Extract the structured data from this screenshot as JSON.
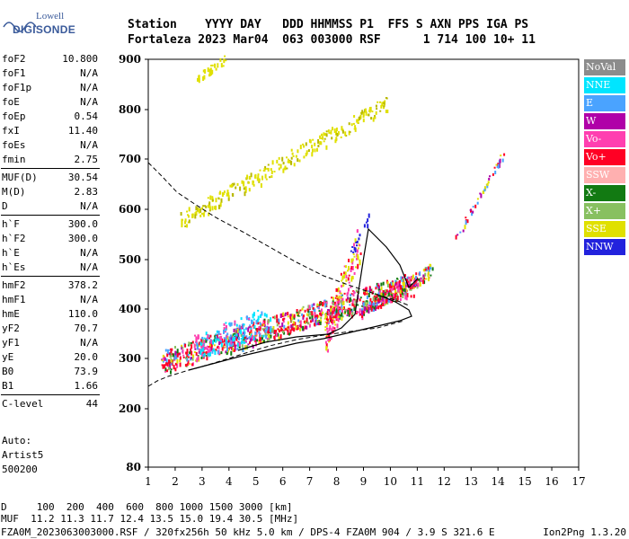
{
  "brand": {
    "line1": "Lowell",
    "line2": "DIGISONDE"
  },
  "header": {
    "line1": "Station    YYYY DAY   DDD HHMMSS P1  FFS S AXN PPS IGA PS",
    "line2": "Fortaleza 2023 Mar04  063 003000 RSF      1 714 100 10+ 11"
  },
  "params": [
    [
      {
        "k": "foF2",
        "v": "10.800"
      },
      {
        "k": "foF1",
        "v": "N/A"
      },
      {
        "k": "foF1p",
        "v": "N/A"
      },
      {
        "k": "foE",
        "v": "N/A"
      },
      {
        "k": "foEp",
        "v": "0.54"
      },
      {
        "k": "fxI",
        "v": "11.40"
      },
      {
        "k": "foEs",
        "v": "N/A"
      },
      {
        "k": "fmin",
        "v": "2.75"
      }
    ],
    [
      {
        "k": "MUF(D)",
        "v": "30.54"
      },
      {
        "k": "M(D)",
        "v": "2.83"
      },
      {
        "k": "D",
        "v": "N/A"
      }
    ],
    [
      {
        "k": "h`F",
        "v": "300.0"
      },
      {
        "k": "h`F2",
        "v": "300.0"
      },
      {
        "k": "h`E",
        "v": "N/A"
      },
      {
        "k": "h`Es",
        "v": "N/A"
      }
    ],
    [
      {
        "k": "hmF2",
        "v": "378.2"
      },
      {
        "k": "hmF1",
        "v": "N/A"
      },
      {
        "k": "hmE",
        "v": "110.0"
      },
      {
        "k": "yF2",
        "v": "70.7"
      },
      {
        "k": "yF1",
        "v": "N/A"
      },
      {
        "k": "yE",
        "v": "20.0"
      },
      {
        "k": "B0",
        "v": "73.9"
      },
      {
        "k": "B1",
        "v": "1.66"
      }
    ],
    [
      {
        "k": "C-level",
        "v": "44"
      }
    ]
  ],
  "auto": {
    "line1": "Auto:",
    "line2": "Artist5",
    "line3": "500200"
  },
  "legend": [
    {
      "label": "NoVal",
      "color": "#8c8c8c"
    },
    {
      "label": "NNE",
      "color": "#00e5ff"
    },
    {
      "label": "E",
      "color": "#4aa3ff"
    },
    {
      "label": "W",
      "color": "#b000a8"
    },
    {
      "label": "Vo-",
      "color": "#ff3fb0"
    },
    {
      "label": "Vo+",
      "color": "#ff0024"
    },
    {
      "label": "SSW",
      "color": "#ffb0b0"
    },
    {
      "label": "X-",
      "color": "#127a12"
    },
    {
      "label": "X+",
      "color": "#88c060"
    },
    {
      "label": "SSE",
      "color": "#e0e000"
    },
    {
      "label": "NNW",
      "color": "#2222dd"
    }
  ],
  "axes": {
    "y_ticks": [
      "900",
      "800",
      "700",
      "600",
      "500",
      "400",
      "300",
      "200",
      "80"
    ],
    "x_ticks": [
      "1",
      "2",
      "3",
      "4",
      "5",
      "6",
      "7",
      "8",
      "9",
      "10",
      "11",
      "12",
      "13",
      "14",
      "15",
      "16",
      "17"
    ]
  },
  "footer": {
    "line1": "D     100  200  400  600  800 1000 1500 3000 [km]",
    "line2": "MUF  11.2 11.3 11.7 12.4 13.5 15.0 19.4 30.5 [MHz]",
    "line3": "FZA0M_2023063003000.RSF / 320fx256h 50 kHz 5.0 km / DPS-4 FZA0M 904 / 3.9 S 321.6 E",
    "line3_right": "Ion2Png 1.3.20"
  }
}
